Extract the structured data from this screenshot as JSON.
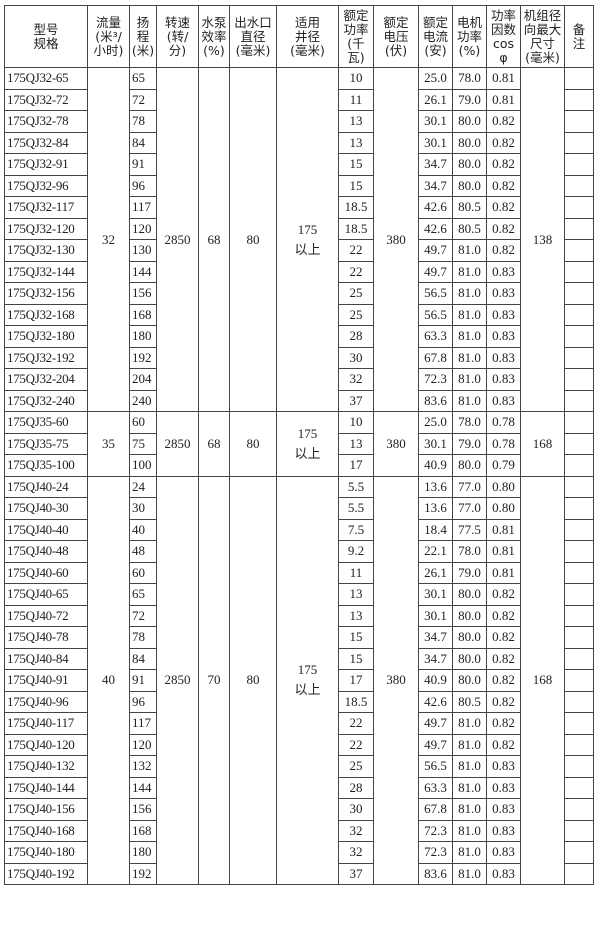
{
  "headers": [
    "型号\n规格",
    "流量\n(米³/\n小时)",
    "扬\n程\n(米)",
    "转速\n(转/\n分)",
    "水泵\n效率\n(%)",
    "出水口\n直径\n(毫米)",
    "适用\n井径\n(毫米)",
    "额定\n功率\n(千\n瓦)",
    "额定\n电压\n(伏)",
    "额定\n电流\n(安)",
    "电机\n功率\n(%)",
    "功率\n因数\ncos φ",
    "机组径\n向最大\n尺寸\n(毫米)",
    "备\n注"
  ],
  "groups": [
    {
      "flow": "32",
      "speed": "2850",
      "efficiency": "68",
      "outlet": "80",
      "well": "175\n以上",
      "voltage": "380",
      "max_size": "138",
      "rows": [
        [
          "175QJ32-65",
          "65",
          "10",
          "25.0",
          "78.0",
          "0.81"
        ],
        [
          "175QJ32-72",
          "72",
          "11",
          "26.1",
          "79.0",
          "0.81"
        ],
        [
          "175QJ32-78",
          "78",
          "13",
          "30.1",
          "80.0",
          "0.82"
        ],
        [
          "175QJ32-84",
          "84",
          "13",
          "30.1",
          "80.0",
          "0.82"
        ],
        [
          "175QJ32-91",
          "91",
          "15",
          "34.7",
          "80.0",
          "0.82"
        ],
        [
          "175QJ32-96",
          "96",
          "15",
          "34.7",
          "80.0",
          "0.82"
        ],
        [
          "175QJ32-117",
          "117",
          "18.5",
          "42.6",
          "80.5",
          "0.82"
        ],
        [
          "175QJ32-120",
          "120",
          "18.5",
          "42.6",
          "80.5",
          "0.82"
        ],
        [
          "175QJ32-130",
          "130",
          "22",
          "49.7",
          "81.0",
          "0.82"
        ],
        [
          "175QJ32-144",
          "144",
          "22",
          "49.7",
          "81.0",
          "0.83"
        ],
        [
          "175QJ32-156",
          "156",
          "25",
          "56.5",
          "81.0",
          "0.83"
        ],
        [
          "175QJ32-168",
          "168",
          "25",
          "56.5",
          "81.0",
          "0.83"
        ],
        [
          "175QJ32-180",
          "180",
          "28",
          "63.3",
          "81.0",
          "0.83"
        ],
        [
          "175QJ32-192",
          "192",
          "30",
          "67.8",
          "81.0",
          "0.83"
        ],
        [
          "175QJ32-204",
          "204",
          "32",
          "72.3",
          "81.0",
          "0.83"
        ],
        [
          "175QJ32-240",
          "240",
          "37",
          "83.6",
          "81.0",
          "0.83"
        ]
      ]
    },
    {
      "flow": "35",
      "speed": "2850",
      "efficiency": "68",
      "outlet": "80",
      "well": "175\n以上",
      "voltage": "380",
      "max_size": "168",
      "rows": [
        [
          "175QJ35-60",
          "60",
          "10",
          "25.0",
          "78.0",
          "0.78"
        ],
        [
          "175QJ35-75",
          "75",
          "13",
          "30.1",
          "79.0",
          "0.78"
        ],
        [
          "175QJ35-100",
          "100",
          "17",
          "40.9",
          "80.0",
          "0.79"
        ]
      ]
    },
    {
      "flow": "40",
      "speed": "2850",
      "efficiency": "70",
      "outlet": "80",
      "well": "175\n以上",
      "voltage": "380",
      "max_size": "168",
      "rows": [
        [
          "175QJ40-24",
          "24",
          "5.5",
          "13.6",
          "77.0",
          "0.80"
        ],
        [
          "175QJ40-30",
          "30",
          "5.5",
          "13.6",
          "77.0",
          "0.80"
        ],
        [
          "175QJ40-40",
          "40",
          "7.5",
          "18.4",
          "77.5",
          "0.81"
        ],
        [
          "175QJ40-48",
          "48",
          "9.2",
          "22.1",
          "78.0",
          "0.81"
        ],
        [
          "175QJ40-60",
          "60",
          "11",
          "26.1",
          "79.0",
          "0.81"
        ],
        [
          "175QJ40-65",
          "65",
          "13",
          "30.1",
          "80.0",
          "0.82"
        ],
        [
          "175QJ40-72",
          "72",
          "13",
          "30.1",
          "80.0",
          "0.82"
        ],
        [
          "175QJ40-78",
          "78",
          "15",
          "34.7",
          "80.0",
          "0.82"
        ],
        [
          "175QJ40-84",
          "84",
          "15",
          "34.7",
          "80.0",
          "0.82"
        ],
        [
          "175QJ40-91",
          "91",
          "17",
          "40.9",
          "80.0",
          "0.82"
        ],
        [
          "175QJ40-96",
          "96",
          "18.5",
          "42.6",
          "80.5",
          "0.82"
        ],
        [
          "175QJ40-117",
          "117",
          "22",
          "49.7",
          "81.0",
          "0.82"
        ],
        [
          "175QJ40-120",
          "120",
          "22",
          "49.7",
          "81.0",
          "0.82"
        ],
        [
          "175QJ40-132",
          "132",
          "25",
          "56.5",
          "81.0",
          "0.83"
        ],
        [
          "175QJ40-144",
          "144",
          "28",
          "63.3",
          "81.0",
          "0.83"
        ],
        [
          "175QJ40-156",
          "156",
          "30",
          "67.8",
          "81.0",
          "0.83"
        ],
        [
          "175QJ40-168",
          "168",
          "32",
          "72.3",
          "81.0",
          "0.83"
        ],
        [
          "175QJ40-180",
          "180",
          "32",
          "72.3",
          "81.0",
          "0.83"
        ],
        [
          "175QJ40-192",
          "192",
          "37",
          "83.6",
          "81.0",
          "0.83"
        ]
      ]
    }
  ]
}
